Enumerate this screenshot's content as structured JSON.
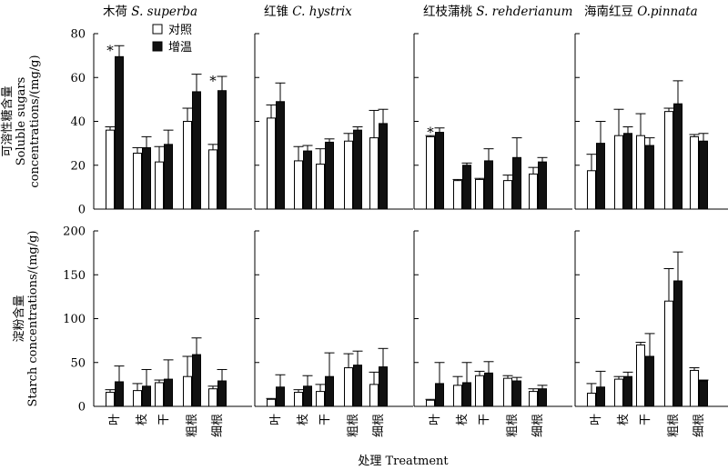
{
  "chart_data": {
    "type": "bar",
    "categories": [
      "叶",
      "枝",
      "干",
      "粗根",
      "细根"
    ],
    "legend": [
      "对照",
      "增温"
    ],
    "xlabel": "处理 Treatment",
    "rows": [
      {
        "ylabel_lines": [
          "可溶性糖含量",
          "Soluble sugars",
          "concentrations/(mg/g)"
        ],
        "ylim": [
          0,
          80
        ],
        "yticks": [
          0,
          20,
          40,
          60,
          80
        ]
      },
      {
        "ylabel_lines": [
          "淀粉含量",
          "Starch concentrations/(mg/g)"
        ],
        "ylim": [
          0,
          200
        ],
        "yticks": [
          0,
          50,
          100,
          150,
          200
        ]
      }
    ],
    "panels": [
      {
        "title_cn": "木荷",
        "title_latin": "S. superba",
        "row": 0,
        "col": 0,
        "control": [
          36,
          25.5,
          21.5,
          40,
          27
        ],
        "control_err": [
          1.5,
          2.5,
          7,
          6,
          2.5
        ],
        "warming": [
          69.5,
          28,
          29.5,
          53.5,
          54
        ],
        "warming_err": [
          5,
          5,
          6.5,
          8,
          6.5
        ],
        "significant": [
          true,
          false,
          false,
          false,
          true
        ]
      },
      {
        "title_cn": "红锥",
        "title_latin": "C. hystrix",
        "row": 0,
        "col": 1,
        "control": [
          41.5,
          22,
          20.5,
          31,
          32.5
        ],
        "control_err": [
          6,
          6.5,
          7,
          3.5,
          12.5
        ],
        "warming": [
          49,
          26.5,
          30.5,
          36,
          39
        ],
        "warming_err": [
          8.5,
          2.5,
          1.5,
          1.5,
          6.5
        ],
        "significant": [
          false,
          false,
          false,
          false,
          false
        ]
      },
      {
        "title_cn": "红枝蒲桃",
        "title_latin": "S. rehderianum",
        "row": 0,
        "col": 2,
        "control": [
          33,
          13,
          13.5,
          13,
          16
        ],
        "control_err": [
          0.5,
          0.5,
          0.5,
          2.5,
          3
        ],
        "warming": [
          35,
          20,
          22,
          23.5,
          21.5
        ],
        "warming_err": [
          2,
          1,
          5.5,
          9,
          2
        ],
        "significant": [
          true,
          false,
          false,
          false,
          false
        ]
      },
      {
        "title_cn": "海南红豆",
        "title_latin": "O.pinnata",
        "row": 0,
        "col": 3,
        "control": [
          17.5,
          33.5,
          33.5,
          44.5,
          33
        ],
        "control_err": [
          7.5,
          12,
          10,
          1.5,
          1
        ],
        "warming": [
          30,
          34.5,
          29,
          48,
          31
        ],
        "warming_err": [
          10,
          3,
          3.5,
          10.5,
          3.5
        ],
        "significant": [
          false,
          false,
          false,
          false,
          false
        ]
      },
      {
        "title_cn": "",
        "title_latin": "",
        "row": 1,
        "col": 0,
        "control": [
          16,
          18,
          27,
          34,
          20
        ],
        "control_err": [
          3,
          8,
          3,
          23,
          3
        ],
        "warming": [
          28,
          23,
          31,
          59,
          29
        ],
        "warming_err": [
          18,
          19,
          22,
          19,
          13
        ],
        "significant": [
          false,
          false,
          false,
          false,
          false
        ]
      },
      {
        "title_cn": "",
        "title_latin": "",
        "row": 1,
        "col": 1,
        "control": [
          8,
          16,
          17,
          44,
          25
        ],
        "control_err": [
          1,
          3,
          8,
          16,
          14
        ],
        "warming": [
          22,
          23,
          34,
          47,
          45
        ],
        "warming_err": [
          14,
          12,
          27,
          16,
          21
        ],
        "significant": [
          false,
          false,
          false,
          false,
          false
        ]
      },
      {
        "title_cn": "",
        "title_latin": "",
        "row": 1,
        "col": 2,
        "control": [
          7,
          24,
          35,
          32,
          17
        ],
        "control_err": [
          1,
          10,
          5,
          3,
          3
        ],
        "warming": [
          26,
          27,
          38,
          29,
          20
        ],
        "warming_err": [
          24,
          23,
          13,
          4,
          4
        ],
        "significant": [
          false,
          false,
          false,
          false,
          false
        ]
      },
      {
        "title_cn": "",
        "title_latin": "",
        "row": 1,
        "col": 3,
        "control": [
          15,
          31,
          70,
          120,
          41
        ],
        "control_err": [
          11,
          3,
          3,
          37,
          3
        ],
        "warming": [
          22,
          34,
          57,
          143,
          29
        ],
        "warming_err": [
          18,
          5,
          26,
          33,
          1
        ],
        "significant": [
          false,
          false,
          false,
          false,
          false
        ]
      }
    ]
  }
}
